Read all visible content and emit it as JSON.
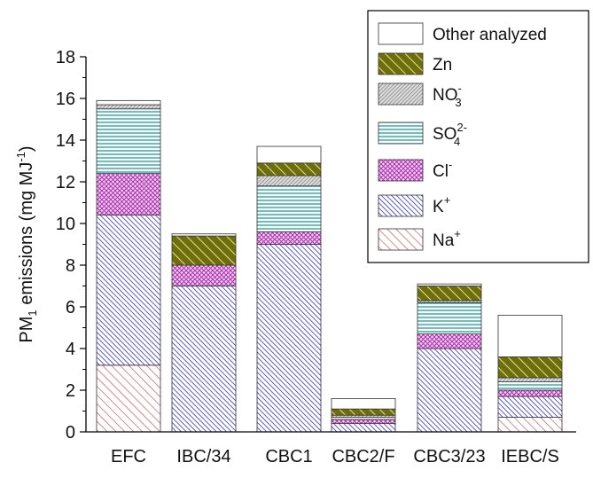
{
  "chart_data": {
    "type": "bar",
    "stacked": true,
    "title": "",
    "xlabel": "",
    "ylabel": {
      "base": "PM",
      "sub": "1",
      "mid": " emissions (mg MJ",
      "sup": "-1",
      "end": ")"
    },
    "ylim": [
      0,
      18
    ],
    "yticks": [
      "0",
      "2",
      "4",
      "6",
      "8",
      "10",
      "12",
      "14",
      "16",
      "18"
    ],
    "grid": false,
    "legend_position": "top-right",
    "categories": [
      "EFC",
      "IBC/34",
      "CBC1",
      "CBC2/F",
      "CBC3/23",
      "IEBC/S"
    ],
    "series": [
      {
        "key": "na",
        "legend": {
          "base": "Na",
          "sup": "+"
        },
        "color": "#c0504d",
        "pattern": "diag-right",
        "values": [
          3.2,
          0.0,
          0.0,
          0.0,
          0.0,
          0.7
        ]
      },
      {
        "key": "k",
        "legend": {
          "base": "K",
          "sup": "+"
        },
        "color": "#3333bb",
        "pattern": "diag-right-dense",
        "values": [
          7.2,
          7.0,
          9.0,
          0.4,
          4.0,
          1.0
        ]
      },
      {
        "key": "cl",
        "legend": {
          "base": "Cl",
          "sup": "-"
        },
        "color": "#b030b0",
        "pattern": "crosshatch",
        "values": [
          2.0,
          1.0,
          0.6,
          0.2,
          0.7,
          0.3
        ]
      },
      {
        "key": "so4",
        "legend": {
          "base": "SO",
          "sub": "4",
          "sup": "2-"
        },
        "color": "#2fa5a5",
        "pattern": "horizontal",
        "values": [
          3.1,
          0.0,
          2.2,
          0.1,
          1.5,
          0.4
        ]
      },
      {
        "key": "no3",
        "legend": {
          "base": "NO",
          "sub": "3",
          "sup": "-"
        },
        "color": "#777777",
        "pattern": "diag-left-dense",
        "values": [
          0.2,
          0.0,
          0.5,
          0.1,
          0.1,
          0.2
        ]
      },
      {
        "key": "zn",
        "legend": {
          "base": "Zn"
        },
        "color": "#6e6e0a",
        "pattern": "diag-bold",
        "values": [
          0.0,
          1.4,
          0.6,
          0.3,
          0.7,
          1.0
        ]
      },
      {
        "key": "other",
        "legend": {
          "base": "Other analyzed"
        },
        "color": "#ffffff",
        "pattern": "none",
        "values": [
          0.2,
          0.1,
          0.8,
          0.5,
          0.1,
          2.0
        ]
      }
    ]
  }
}
